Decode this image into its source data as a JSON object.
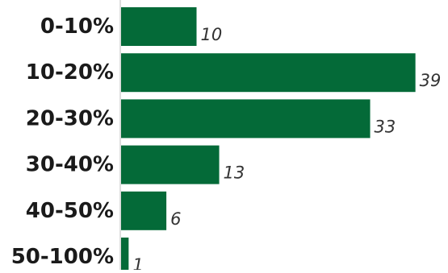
{
  "chart_data": {
    "type": "bar",
    "orientation": "horizontal",
    "categories": [
      "0-10%",
      "10-20%",
      "20-30%",
      "30-40%",
      "40-50%",
      "50-100%"
    ],
    "values": [
      10,
      39,
      33,
      13,
      6,
      1
    ],
    "title": "",
    "xlabel": "",
    "ylabel": "",
    "grid": false,
    "bar_color": "#046a38",
    "axis_color": "#bbbbbb"
  }
}
